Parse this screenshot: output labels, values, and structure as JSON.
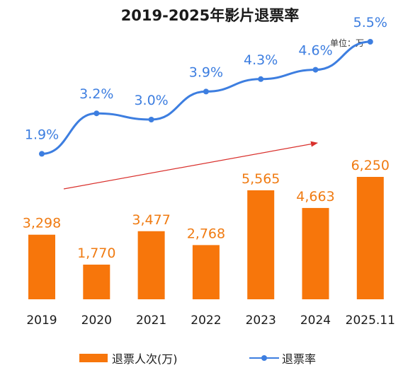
{
  "title": "2019-2025年影片退票率",
  "unit_label": "单位：万",
  "chart_data": {
    "type": "bar",
    "categories": [
      "2019",
      "2020",
      "2021",
      "2022",
      "2023",
      "2024",
      "2025.11"
    ],
    "series": [
      {
        "name": "退票人次(万)",
        "type": "bar",
        "values": [
          3298,
          1770,
          3477,
          2768,
          5565,
          4663,
          6250
        ],
        "labels": [
          "3,298",
          "1,770",
          "3,477",
          "2,768",
          "5,565",
          "4,663",
          "6,250"
        ],
        "color": "#f7760b"
      },
      {
        "name": "退票率",
        "type": "line",
        "values": [
          1.9,
          3.2,
          3.0,
          3.9,
          4.3,
          4.6,
          5.5
        ],
        "labels": [
          "1.9%",
          "3.2%",
          "3.0%",
          "3.9%",
          "4.3%",
          "4.6%",
          "5.5%"
        ],
        "color": "#3d7ee0"
      }
    ],
    "annotation_arrow_color": "#d9302c"
  },
  "legend": {
    "bar_label": "退票人次(万)",
    "line_label": "退票率"
  }
}
